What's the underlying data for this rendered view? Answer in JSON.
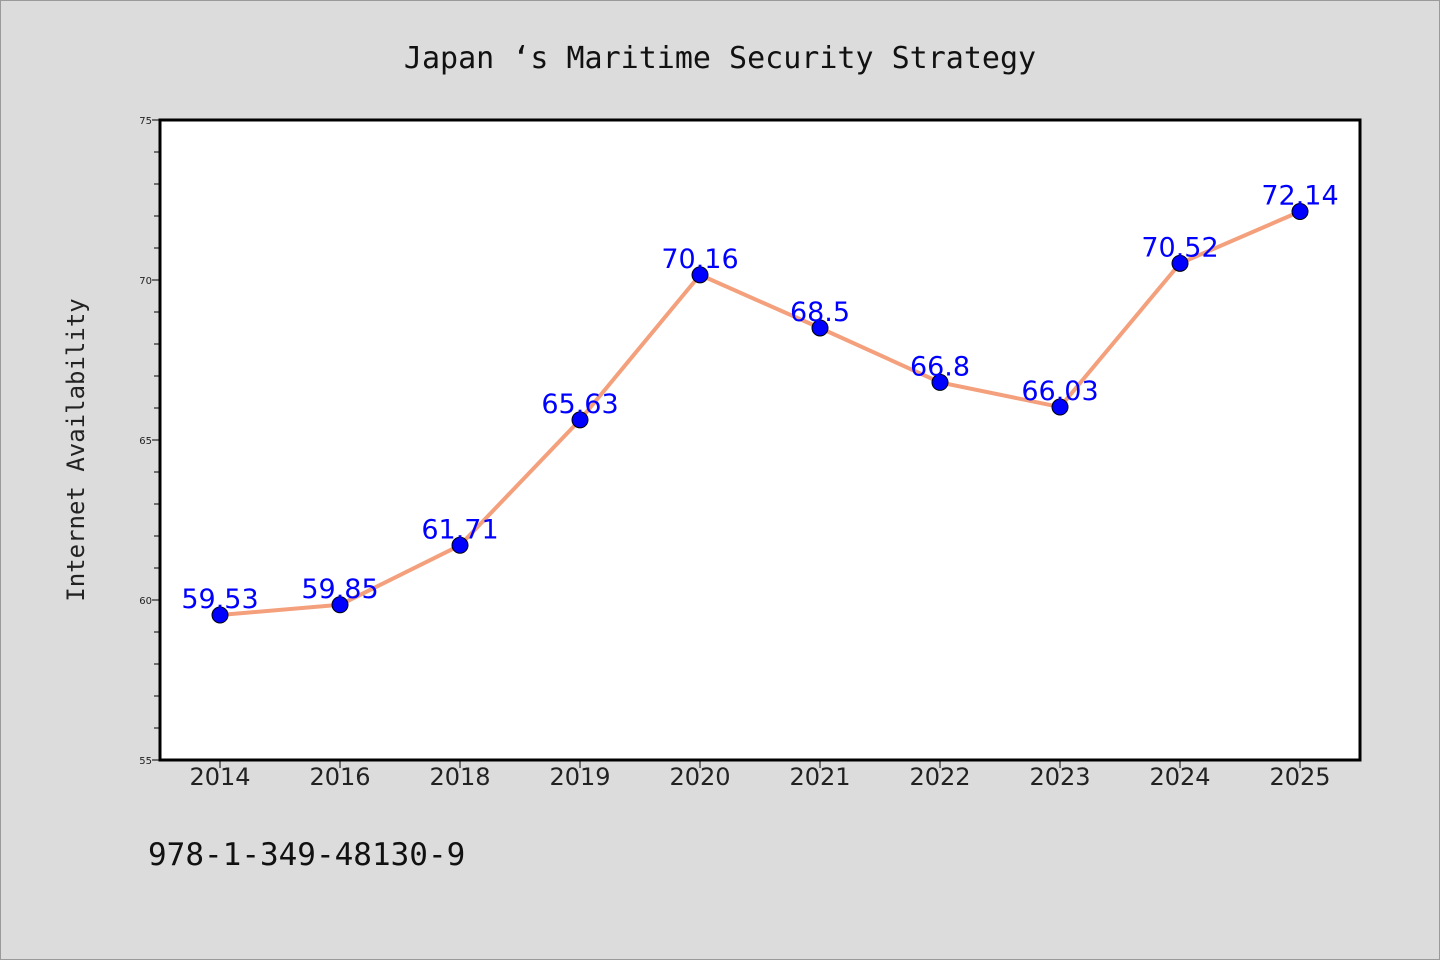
{
  "chart_data": {
    "type": "line",
    "title": "Japan ‘s Maritime Security Strategy",
    "xlabel": "",
    "ylabel": "Internet Availability",
    "categories": [
      "2014",
      "2016",
      "2018",
      "2019",
      "2020",
      "2021",
      "2022",
      "2023",
      "2024",
      "2025"
    ],
    "series": [
      {
        "values": [
          59.53,
          59.85,
          61.71,
          65.63,
          70.16,
          68.5,
          66.8,
          66.03,
          70.52,
          72.14
        ],
        "labels": [
          "59.53",
          "59.85",
          "61.71",
          "65.63",
          "70.16",
          "68.5",
          "66.8",
          "66.03",
          "70.52",
          "72.14"
        ],
        "line_color": "#f4a07c",
        "marker_color": "#0000ff"
      }
    ],
    "ylim": [
      55,
      75
    ],
    "yticks": [
      "55",
      "60",
      "65",
      "70",
      "75"
    ],
    "grid": false,
    "background": "#ffffff"
  },
  "footer": {
    "isbn": "978-1-349-48130-9"
  },
  "colors": {
    "page_background": "#dcdcdc"
  }
}
